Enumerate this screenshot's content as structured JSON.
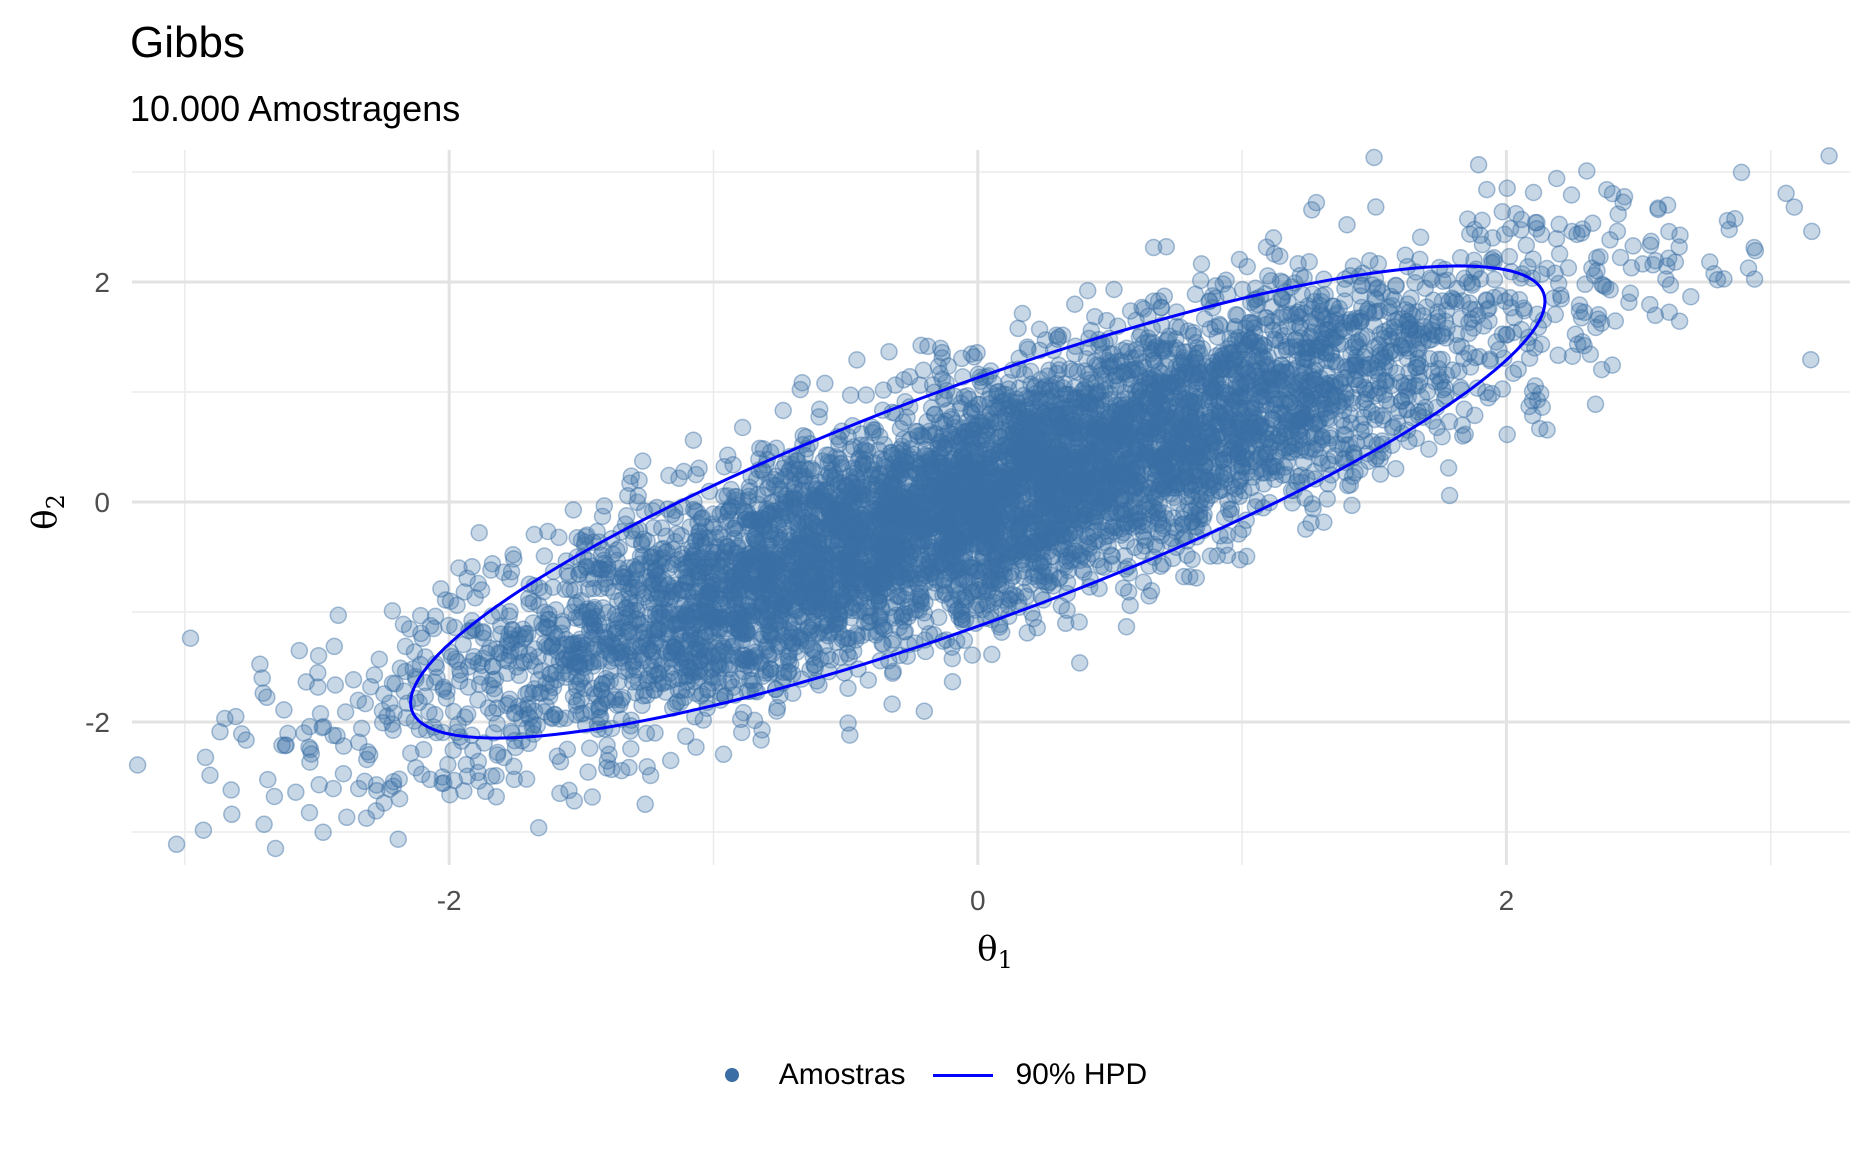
{
  "chart_data": {
    "type": "scatter",
    "title": "Gibbs",
    "subtitle": "10.000 Amostragens",
    "xlabel": "θ1",
    "ylabel": "θ2",
    "xlim": [
      -3.2,
      3.3
    ],
    "ylim": [
      -3.3,
      3.2
    ],
    "x_ticks": [
      -2,
      0,
      2
    ],
    "y_ticks": [
      -2,
      0,
      2
    ],
    "x_tick_labels": [
      "-2",
      "0",
      "2"
    ],
    "y_tick_labels": [
      "-2",
      "0",
      "2"
    ],
    "grid": true,
    "legend_position": "bottom",
    "series": [
      {
        "name": "Amostras",
        "kind": "points",
        "color": "#3A6EA5",
        "n": 10000,
        "mean": [
          0,
          0
        ],
        "sd": [
          1,
          1
        ],
        "correlation": 0.85
      },
      {
        "name": "90% HPD",
        "kind": "ellipse",
        "color": "#0000FF",
        "center": [
          0,
          0
        ],
        "correlation": 0.85,
        "level": 0.9
      }
    ]
  }
}
